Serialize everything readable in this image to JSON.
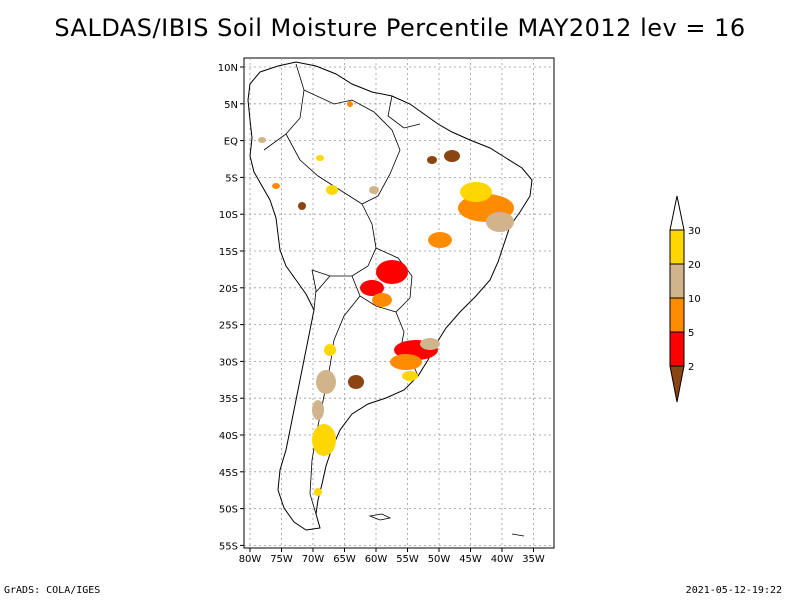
{
  "title": "SALDAS/IBIS Soil Moisture Percentile MAY2012 lev = 16",
  "footer": {
    "left": "GrADS: COLA/IGES",
    "right": "2021-05-12-19:22"
  },
  "map": {
    "lat_labels": [
      "10N",
      "5N",
      "EQ",
      "5S",
      "10S",
      "15S",
      "20S",
      "25S",
      "30S",
      "35S",
      "40S",
      "45S",
      "50S",
      "55S"
    ],
    "lon_labels": [
      "80W",
      "75W",
      "70W",
      "65W",
      "60W",
      "55W",
      "50W",
      "45W",
      "40W",
      "35W"
    ]
  },
  "legend": {
    "labels": [
      "2",
      "5",
      "10",
      "20",
      "30"
    ],
    "colors": [
      "#8b4513",
      "#ff0000",
      "#ff8c00",
      "#d2b48c",
      "#ffd700"
    ]
  }
}
